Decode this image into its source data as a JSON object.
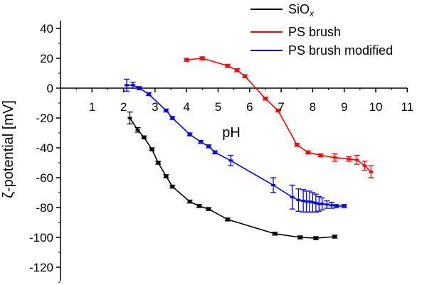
{
  "chart_data": {
    "type": "line",
    "xlabel": "pH",
    "ylabel": "ζ-potential [mV]",
    "xlim": [
      0,
      11
    ],
    "ylim": [
      -130,
      40
    ],
    "x_ticks": [
      1,
      2,
      3,
      4,
      5,
      6,
      7,
      8,
      9,
      10,
      11
    ],
    "y_ticks": [
      40,
      20,
      0,
      -20,
      -40,
      -60,
      -80,
      -100,
      -120
    ],
    "legend_position": "top-right",
    "series": [
      {
        "name": "SiOx",
        "legend_main": "SiO",
        "legend_sub": "x",
        "color": "#000000",
        "points": [
          {
            "x": 2.2,
            "y": -20,
            "err": 4
          },
          {
            "x": 2.45,
            "y": -28,
            "err": 1.5
          },
          {
            "x": 2.65,
            "y": -33,
            "err": 1
          },
          {
            "x": 2.9,
            "y": -41,
            "err": 1
          },
          {
            "x": 3.1,
            "y": -50,
            "err": 1
          },
          {
            "x": 3.35,
            "y": -59,
            "err": 1
          },
          {
            "x": 3.55,
            "y": -66,
            "err": 1
          },
          {
            "x": 4.1,
            "y": -76,
            "err": 1
          },
          {
            "x": 4.4,
            "y": -79,
            "err": 1
          },
          {
            "x": 4.7,
            "y": -81,
            "err": 1
          },
          {
            "x": 5.3,
            "y": -88,
            "err": 1
          },
          {
            "x": 6.8,
            "y": -97.5,
            "err": 1
          },
          {
            "x": 7.6,
            "y": -100,
            "err": 1
          },
          {
            "x": 8.1,
            "y": -100.5,
            "err": 1
          },
          {
            "x": 8.7,
            "y": -99.5,
            "err": 1
          }
        ]
      },
      {
        "name": "PS brush",
        "color": "#ff0000",
        "points": [
          {
            "x": 4.0,
            "y": 19,
            "err": 1
          },
          {
            "x": 4.5,
            "y": 20,
            "err": 1
          },
          {
            "x": 5.3,
            "y": 15,
            "err": 1
          },
          {
            "x": 5.6,
            "y": 12,
            "err": 1
          },
          {
            "x": 5.85,
            "y": 8,
            "err": 1
          },
          {
            "x": 6.5,
            "y": -7,
            "err": 1
          },
          {
            "x": 6.9,
            "y": -15,
            "err": 1
          },
          {
            "x": 7.5,
            "y": -38,
            "err": 1
          },
          {
            "x": 7.85,
            "y": -43,
            "err": 1
          },
          {
            "x": 8.25,
            "y": -45,
            "err": 1
          },
          {
            "x": 8.7,
            "y": -46.5,
            "err": 2.5
          },
          {
            "x": 9.15,
            "y": -47.5,
            "err": 1.5
          },
          {
            "x": 9.4,
            "y": -48,
            "err": 3
          },
          {
            "x": 9.65,
            "y": -52,
            "err": 3
          },
          {
            "x": 9.85,
            "y": -56,
            "err": 4
          }
        ]
      },
      {
        "name": "PS brush modified",
        "color": "#0000ff",
        "points": [
          {
            "x": 2.1,
            "y": 2,
            "err": 4
          },
          {
            "x": 2.3,
            "y": 2,
            "err": 2
          },
          {
            "x": 2.5,
            "y": 0,
            "err": 1
          },
          {
            "x": 2.8,
            "y": -4,
            "err": 1
          },
          {
            "x": 3.35,
            "y": -15,
            "err": 1
          },
          {
            "x": 3.55,
            "y": -20,
            "err": 1
          },
          {
            "x": 4.1,
            "y": -31,
            "err": 1
          },
          {
            "x": 4.45,
            "y": -36,
            "err": 1
          },
          {
            "x": 4.7,
            "y": -39,
            "err": 1
          },
          {
            "x": 4.9,
            "y": -43,
            "err": 1
          },
          {
            "x": 5.4,
            "y": -48.5,
            "err": 3.5
          },
          {
            "x": 6.75,
            "y": -65,
            "err": 5
          },
          {
            "x": 7.35,
            "y": -73,
            "err": 8
          },
          {
            "x": 7.55,
            "y": -75,
            "err": 7.5
          },
          {
            "x": 7.7,
            "y": -75.5,
            "err": 7.5
          },
          {
            "x": 7.8,
            "y": -76,
            "err": 7
          },
          {
            "x": 7.9,
            "y": -76,
            "err": 7
          },
          {
            "x": 8.0,
            "y": -76.5,
            "err": 6.5
          },
          {
            "x": 8.1,
            "y": -77,
            "err": 6
          },
          {
            "x": 8.2,
            "y": -77.5,
            "err": 5
          },
          {
            "x": 8.3,
            "y": -77.5,
            "err": 4
          },
          {
            "x": 8.45,
            "y": -78,
            "err": 2.5
          },
          {
            "x": 8.6,
            "y": -78.5,
            "err": 2
          },
          {
            "x": 8.75,
            "y": -79,
            "err": 1
          },
          {
            "x": 9.0,
            "y": -79,
            "err": 1
          }
        ]
      }
    ]
  }
}
